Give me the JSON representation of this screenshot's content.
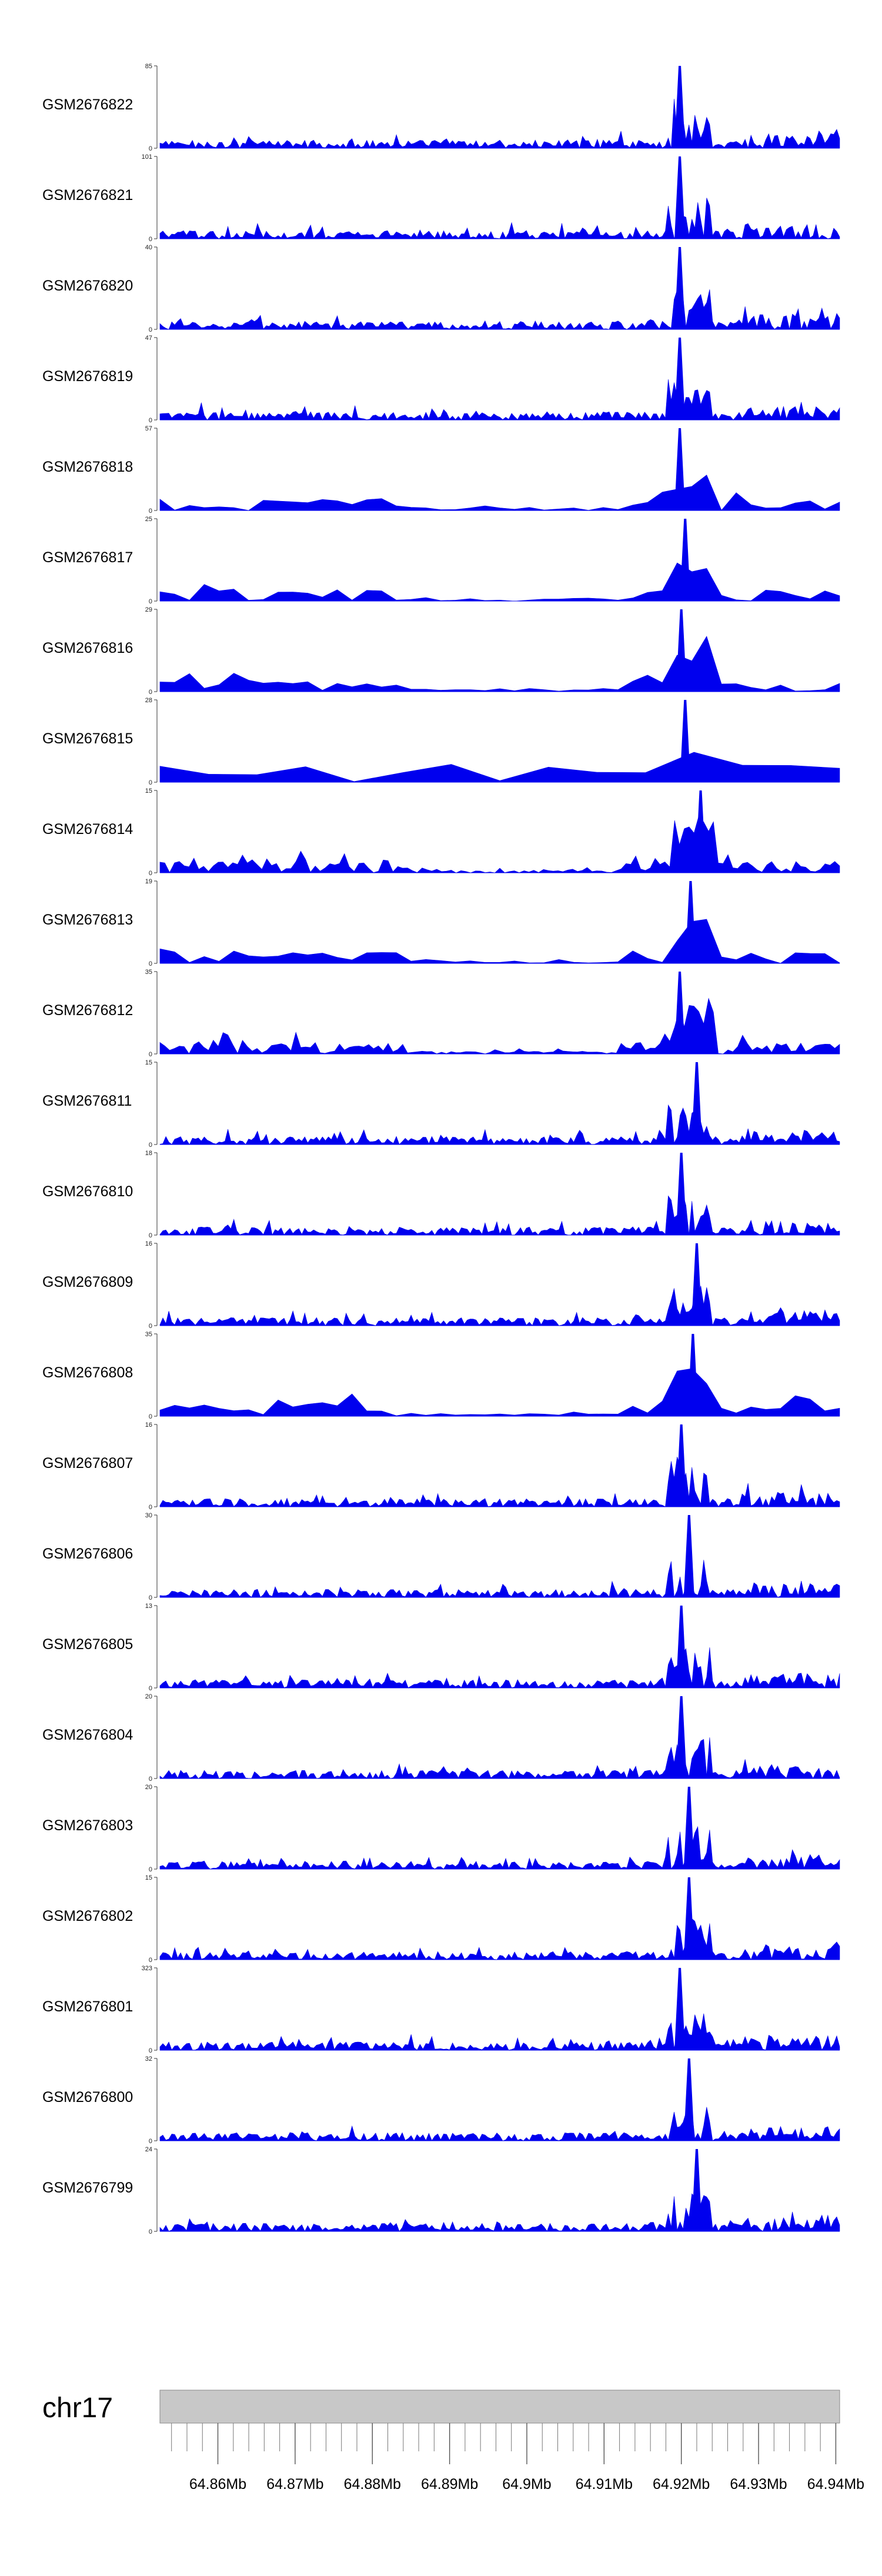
{
  "chart_data": {
    "type": "area",
    "title": "",
    "chromosome": "chr17",
    "x_unit": "Mb",
    "xlim": [
      64.8525,
      64.9405
    ],
    "x_tick_labels": [
      "64.86Mb",
      "64.87Mb",
      "64.88Mb",
      "64.89Mb",
      "64.9Mb",
      "64.91Mb",
      "64.92Mb",
      "64.93Mb",
      "64.94Mb"
    ],
    "x_ticks": [
      64.86,
      64.87,
      64.88,
      64.89,
      64.9,
      64.91,
      64.92,
      64.93,
      64.94
    ],
    "series_color": "#0000ee",
    "ideogram_color": "#c8c8c8",
    "tracks": [
      {
        "name": "GSM2676822",
        "ymax": 85,
        "density": "dense"
      },
      {
        "name": "GSM2676821",
        "ymax": 101,
        "density": "dense"
      },
      {
        "name": "GSM2676820",
        "ymax": 40,
        "density": "dense"
      },
      {
        "name": "GSM2676819",
        "ymax": 47,
        "density": "dense"
      },
      {
        "name": "GSM2676818",
        "ymax": 57,
        "density": "sparse"
      },
      {
        "name": "GSM2676817",
        "ymax": 25,
        "density": "sparse"
      },
      {
        "name": "GSM2676816",
        "ymax": 29,
        "density": "sparse"
      },
      {
        "name": "GSM2676815",
        "ymax": 28,
        "density": "very-sparse"
      },
      {
        "name": "GSM2676814",
        "ymax": 15,
        "density": "medium"
      },
      {
        "name": "GSM2676813",
        "ymax": 19,
        "density": "sparse"
      },
      {
        "name": "GSM2676812",
        "ymax": 35,
        "density": "medium"
      },
      {
        "name": "GSM2676811",
        "ymax": 15,
        "density": "dense"
      },
      {
        "name": "GSM2676810",
        "ymax": 18,
        "density": "dense"
      },
      {
        "name": "GSM2676809",
        "ymax": 16,
        "density": "dense"
      },
      {
        "name": "GSM2676808",
        "ymax": 35,
        "density": "sparse"
      },
      {
        "name": "GSM2676807",
        "ymax": 16,
        "density": "dense"
      },
      {
        "name": "GSM2676806",
        "ymax": 30,
        "density": "dense"
      },
      {
        "name": "GSM2676805",
        "ymax": 13,
        "density": "dense"
      },
      {
        "name": "GSM2676804",
        "ymax": 20,
        "density": "dense"
      },
      {
        "name": "GSM2676803",
        "ymax": 20,
        "density": "dense"
      },
      {
        "name": "GSM2676802",
        "ymax": 15,
        "density": "dense"
      },
      {
        "name": "GSM2676801",
        "ymax": 323,
        "density": "dense"
      },
      {
        "name": "GSM2676800",
        "ymax": 32,
        "density": "dense"
      },
      {
        "name": "GSM2676799",
        "ymax": 24,
        "density": "dense"
      }
    ],
    "peaks": [
      {
        "track": "GSM2676822",
        "x": 64.9198,
        "y": 85
      },
      {
        "track": "GSM2676821",
        "x": 64.9198,
        "y": 101
      },
      {
        "track": "GSM2676820",
        "x": 64.9198,
        "y": 40
      },
      {
        "track": "GSM2676819",
        "x": 64.9198,
        "y": 47
      },
      {
        "track": "GSM2676818",
        "x": 64.9198,
        "y": 57
      },
      {
        "track": "GSM2676817",
        "x": 64.9205,
        "y": 25
      },
      {
        "track": "GSM2676816",
        "x": 64.92,
        "y": 29
      },
      {
        "track": "GSM2676815",
        "x": 64.9205,
        "y": 28
      },
      {
        "track": "GSM2676814",
        "x": 64.9225,
        "y": 15
      },
      {
        "track": "GSM2676813",
        "x": 64.9212,
        "y": 19
      },
      {
        "track": "GSM2676812",
        "x": 64.9198,
        "y": 35
      },
      {
        "track": "GSM2676811",
        "x": 64.922,
        "y": 15
      },
      {
        "track": "GSM2676810",
        "x": 64.92,
        "y": 18
      },
      {
        "track": "GSM2676809",
        "x": 64.922,
        "y": 16
      },
      {
        "track": "GSM2676808",
        "x": 64.9215,
        "y": 35
      },
      {
        "track": "GSM2676807",
        "x": 64.92,
        "y": 16
      },
      {
        "track": "GSM2676806",
        "x": 64.921,
        "y": 30
      },
      {
        "track": "GSM2676805",
        "x": 64.92,
        "y": 13
      },
      {
        "track": "GSM2676804",
        "x": 64.92,
        "y": 20
      },
      {
        "track": "GSM2676803",
        "x": 64.921,
        "y": 20
      },
      {
        "track": "GSM2676802",
        "x": 64.921,
        "y": 15
      },
      {
        "track": "GSM2676801",
        "x": 64.9198,
        "y": 323
      },
      {
        "track": "GSM2676800",
        "x": 64.921,
        "y": 32
      },
      {
        "track": "GSM2676799",
        "x": 64.922,
        "y": 24
      }
    ]
  }
}
